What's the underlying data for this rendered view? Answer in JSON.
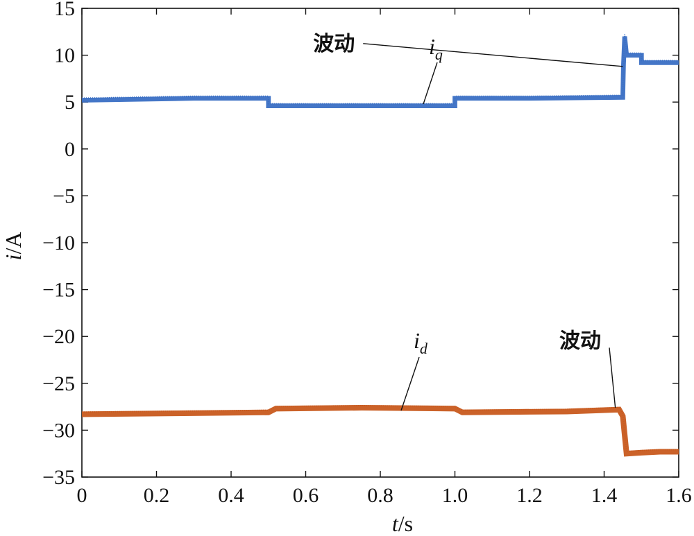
{
  "chart_data": {
    "type": "line",
    "title": "",
    "xlabel": "t/s",
    "xlabel_var": "t",
    "xlabel_unit": "/s",
    "ylabel": "i/A",
    "ylabel_var": "i",
    "ylabel_unit": "/A",
    "xlim": [
      0,
      1.6
    ],
    "ylim": [
      -35,
      15
    ],
    "x_ticks": [
      0,
      0.2,
      0.4,
      0.6,
      0.8,
      1.0,
      1.2,
      1.4,
      1.6
    ],
    "x_tick_labels": [
      "0",
      "0.2",
      "0.4",
      "0.6",
      "0.8",
      "1.0",
      "1.2",
      "1.4",
      "1.6"
    ],
    "y_ticks": [
      15,
      10,
      5,
      0,
      -5,
      -10,
      -15,
      -20,
      -25,
      -30,
      -35
    ],
    "y_tick_labels": [
      "15",
      "10",
      "5",
      "0",
      "−5",
      "−10",
      "−15",
      "−20",
      "−25",
      "−30",
      "−35"
    ],
    "grid": false,
    "series": [
      {
        "name": "iq",
        "label_main": "i",
        "label_sub": "q",
        "color": "#3a6fc4",
        "band": 0.5,
        "x": [
          0,
          0.3,
          0.5,
          0.5,
          0.75,
          1.0,
          1.0,
          1.2,
          1.45,
          1.452,
          1.455,
          1.46,
          1.48,
          1.5,
          1.5,
          1.6
        ],
        "y": [
          5.2,
          5.4,
          5.4,
          4.6,
          4.6,
          4.6,
          5.4,
          5.4,
          5.5,
          9.0,
          12.0,
          10.0,
          10.0,
          10.0,
          9.2,
          9.2
        ]
      },
      {
        "name": "id",
        "label_main": "i",
        "label_sub": "d",
        "color": "#c85a1e",
        "band": 0.6,
        "x": [
          0,
          0.25,
          0.5,
          0.52,
          0.75,
          1.0,
          1.02,
          1.3,
          1.44,
          1.45,
          1.46,
          1.5,
          1.55,
          1.6
        ],
        "y": [
          -28.3,
          -28.2,
          -28.1,
          -27.7,
          -27.6,
          -27.7,
          -28.1,
          -28.0,
          -27.8,
          -28.5,
          -32.5,
          -32.4,
          -32.3,
          -32.3
        ]
      }
    ],
    "annotations": [
      {
        "text": "波动",
        "label_x": 0.62,
        "label_y": 10.5,
        "target_x": 1.45,
        "target_y": 8.8
      },
      {
        "text": "波动",
        "label_x": 1.28,
        "label_y": -21.2,
        "target_x": 1.43,
        "target_y": -27.6
      }
    ]
  }
}
